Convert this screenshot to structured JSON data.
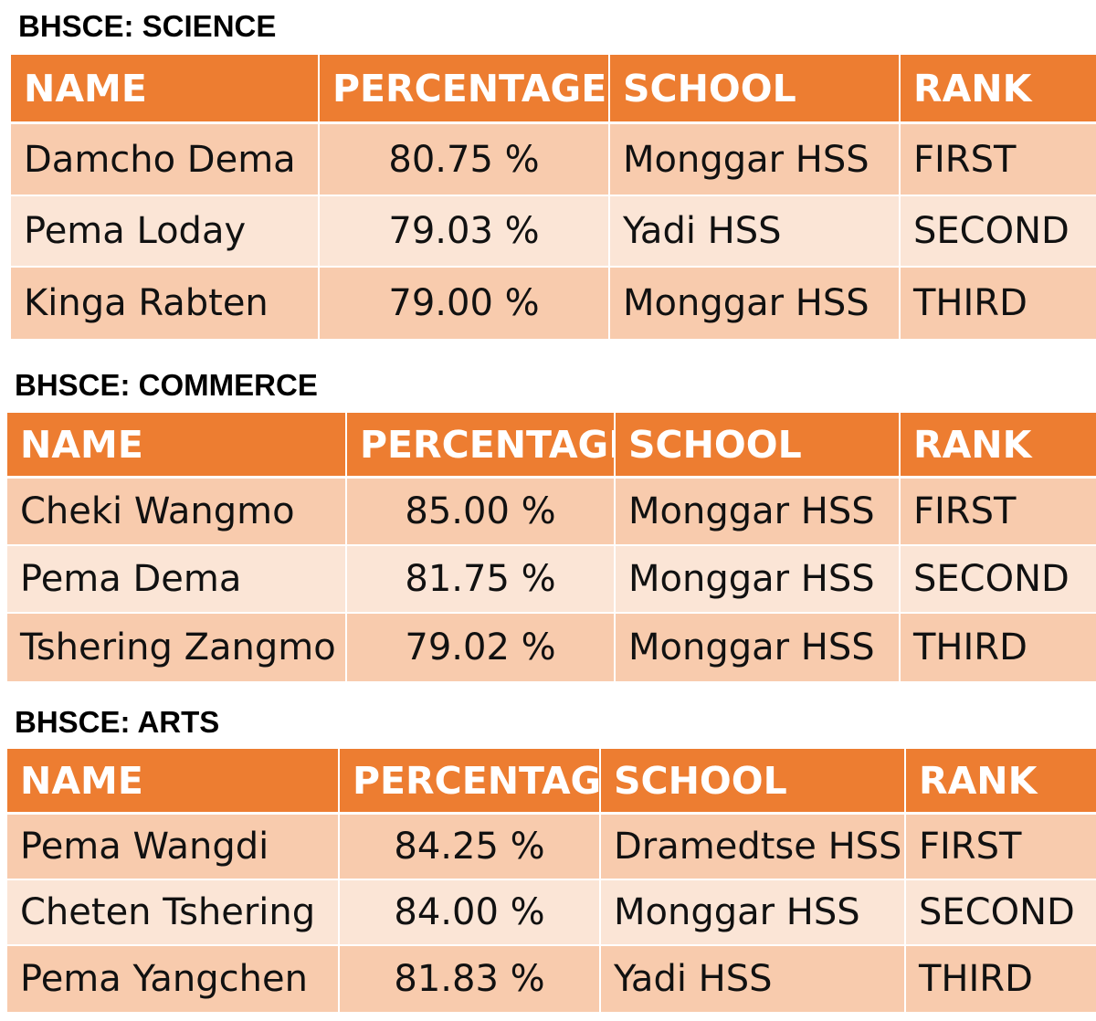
{
  "sections": [
    {
      "title": "BHSCE: SCIENCE",
      "headers": [
        "NAME",
        "PERCENTAGE",
        "SCHOOL",
        "RANK"
      ],
      "rows": [
        {
          "name": "Damcho Dema",
          "percentage": "80.75 %",
          "school": "Monggar HSS",
          "rank": "FIRST"
        },
        {
          "name": "Pema Loday",
          "percentage": "79.03 %",
          "school": "Yadi HSS",
          "rank": "SECOND"
        },
        {
          "name": "Kinga Rabten",
          "percentage": "79.00 %",
          "school": "Monggar HSS",
          "rank": "THIRD"
        }
      ]
    },
    {
      "title": "BHSCE: COMMERCE",
      "headers": [
        "NAME",
        "PERCENTAGE",
        "SCHOOL",
        "RANK"
      ],
      "rows": [
        {
          "name": "Cheki Wangmo",
          "percentage": "85.00 %",
          "school": "Monggar HSS",
          "rank": "FIRST"
        },
        {
          "name": "Pema Dema",
          "percentage": "81.75 %",
          "school": "Monggar HSS",
          "rank": "SECOND"
        },
        {
          "name": "Tshering Zangmo",
          "percentage": "79.02 %",
          "school": "Monggar HSS",
          "rank": "THIRD"
        }
      ]
    },
    {
      "title": "BHSCE: ARTS",
      "headers": [
        "NAME",
        "PERCENTAGE",
        "SCHOOL",
        "RANK"
      ],
      "rows": [
        {
          "name": "Pema Wangdi",
          "percentage": "84.25 %",
          "school": "Dramedtse HSS",
          "rank": "FIRST"
        },
        {
          "name": "Cheten Tshering",
          "percentage": "84.00 %",
          "school": "Monggar HSS",
          "rank": "SECOND"
        },
        {
          "name": "Pema Yangchen",
          "percentage": "81.83 %",
          "school": "Yadi HSS",
          "rank": "THIRD"
        }
      ]
    }
  ],
  "colors": {
    "header": "#ED7D31",
    "row_dark": "#F8CBAD",
    "row_light": "#FBE5D6"
  }
}
